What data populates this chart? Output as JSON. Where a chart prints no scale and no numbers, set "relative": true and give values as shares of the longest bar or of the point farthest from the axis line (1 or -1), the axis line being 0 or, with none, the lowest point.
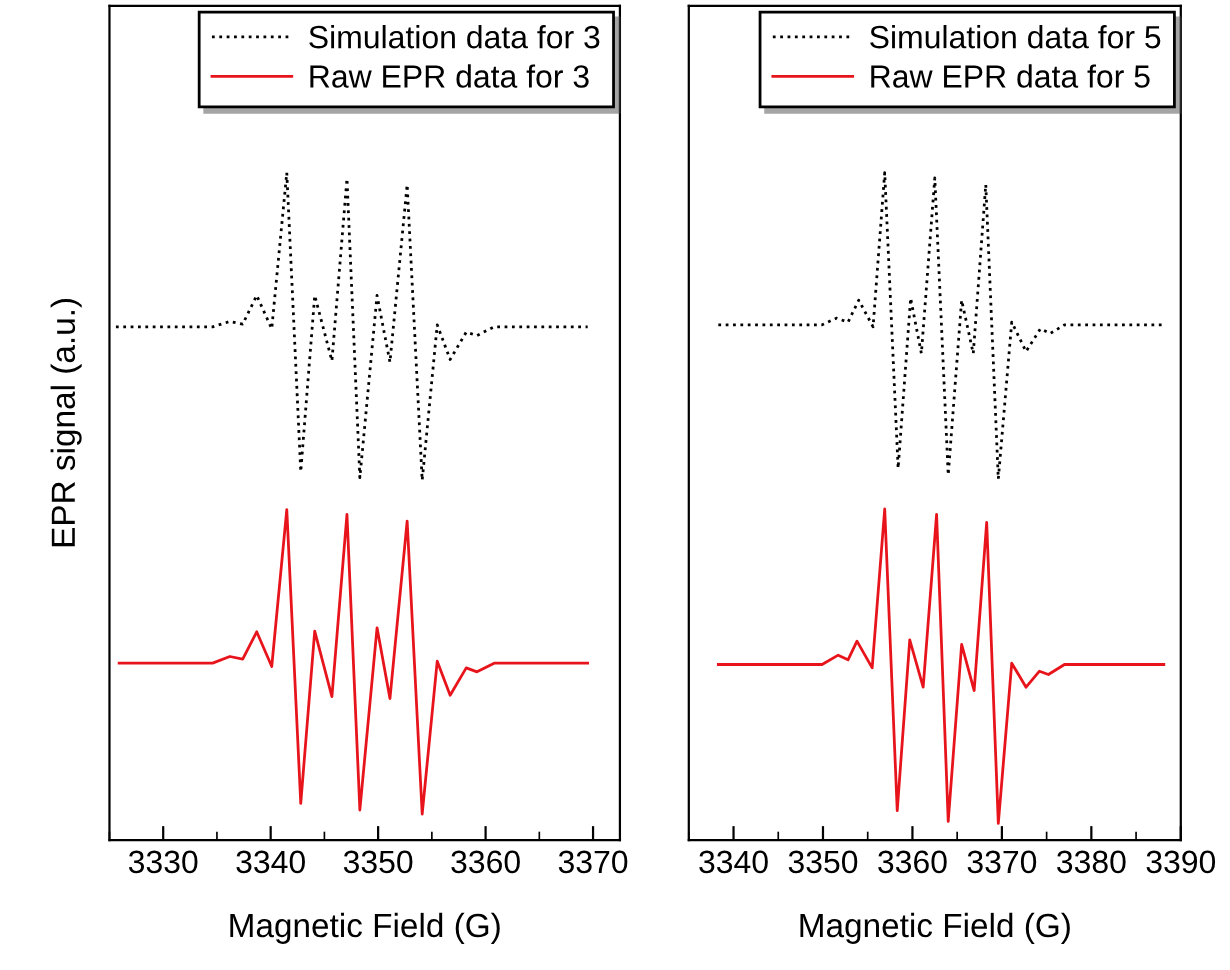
{
  "chart_data": [
    {
      "type": "line",
      "relative": true,
      "xlabel": "Magnetic Field (G)",
      "ylabel": "EPR signal (a.u.)",
      "xlim": [
        3325,
        3372.5
      ],
      "xticks": [
        3330,
        3340,
        3350,
        3360,
        3370
      ],
      "tick_labels": "x",
      "legend": "top right",
      "grid": false,
      "series": [
        {
          "name": "Simulation data for 3",
          "color": "#000000",
          "line_style": "dotted",
          "x": [
            3325.6,
            3334.6,
            3336.2,
            3337.4,
            3338.7,
            3340.1,
            3341.5,
            3342.8,
            3344.1,
            3345.7,
            3347.1,
            3348.3,
            3349.9,
            3351.1,
            3352.7,
            3354.1,
            3355.5,
            3356.7,
            3358.2,
            3359.2,
            3360.8,
            3369.5
          ],
          "values": [
            0.769,
            0.769,
            0.777,
            0.773,
            0.816,
            0.766,
            1.0,
            0.552,
            0.816,
            0.718,
            0.991,
            0.543,
            0.816,
            0.716,
            0.982,
            0.539,
            0.772,
            0.72,
            0.761,
            0.756,
            0.769,
            0.769
          ]
        },
        {
          "name": "Raw EPR data for 3",
          "color": "#e8141c",
          "line_style": "solid",
          "x": [
            3325.9,
            3334.6,
            3336.2,
            3337.4,
            3338.7,
            3340.1,
            3341.5,
            3342.8,
            3344.1,
            3345.7,
            3347.1,
            3348.3,
            3349.9,
            3351.1,
            3352.7,
            3354.1,
            3355.5,
            3356.7,
            3358.2,
            3359.2,
            3360.8,
            3369.5
          ],
          "values": [
            0.265,
            0.265,
            0.275,
            0.271,
            0.312,
            0.26,
            0.495,
            0.055,
            0.313,
            0.215,
            0.488,
            0.045,
            0.318,
            0.212,
            0.478,
            0.039,
            0.268,
            0.217,
            0.258,
            0.252,
            0.265,
            0.265
          ]
        }
      ]
    },
    {
      "type": "line",
      "relative": true,
      "xlabel": "Magnetic Field (G)",
      "xlim": [
        3335,
        3390
      ],
      "xticks": [
        3340,
        3350,
        3360,
        3370,
        3380,
        3390
      ],
      "tick_labels": "x",
      "legend": "top right",
      "grid": false,
      "series": [
        {
          "name": "Simulation data for 5",
          "color": "#000000",
          "line_style": "dotted",
          "x": [
            3338.3,
            3349.9,
            3351.5,
            3352.8,
            3354.0,
            3355.6,
            3356.9,
            3358.4,
            3359.8,
            3361.0,
            3362.5,
            3364.0,
            3365.5,
            3366.8,
            3368.2,
            3369.6,
            3371.1,
            3372.7,
            3374.3,
            3375.4,
            3377.0,
            3387.9
          ],
          "values": [
            0.772,
            0.772,
            0.782,
            0.776,
            0.809,
            0.769,
            1.0,
            0.557,
            0.812,
            0.729,
            0.992,
            0.547,
            0.809,
            0.729,
            0.982,
            0.541,
            0.776,
            0.732,
            0.766,
            0.759,
            0.772,
            0.772
          ]
        },
        {
          "name": "Raw EPR data for 5",
          "color": "#e8141c",
          "line_style": "solid",
          "x": [
            3338.3,
            3349.9,
            3351.7,
            3352.8,
            3353.8,
            3355.5,
            3356.9,
            3358.3,
            3359.7,
            3361.2,
            3362.7,
            3364.0,
            3365.5,
            3366.9,
            3368.3,
            3369.6,
            3371.1,
            3372.7,
            3374.2,
            3375.2,
            3377.0,
            3388.1
          ],
          "values": [
            0.263,
            0.263,
            0.277,
            0.27,
            0.298,
            0.258,
            0.496,
            0.044,
            0.3,
            0.229,
            0.488,
            0.028,
            0.293,
            0.224,
            0.476,
            0.025,
            0.265,
            0.229,
            0.253,
            0.248,
            0.263,
            0.263
          ]
        }
      ]
    }
  ]
}
